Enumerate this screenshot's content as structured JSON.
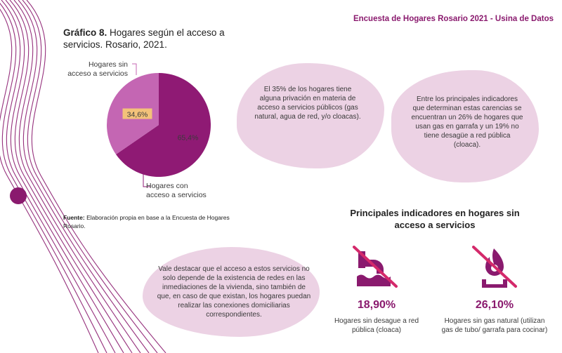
{
  "header": {
    "title": "Encuesta de Hogares Rosario 2021 - Usina de Datos"
  },
  "chart": {
    "title_bold": "Gráfico 8.",
    "title_rest": " Hogares según el acceso a servicios. Rosario, 2021.",
    "source_bold": "Fuente:",
    "source_rest": " Elaboración propia en base a la Encuesta de Hogares Rosario."
  },
  "chart_data": {
    "type": "pie",
    "slices": [
      {
        "label": "Hogares sin acceso a servicios",
        "value": 34.6,
        "value_label": "34,6%",
        "color": "#c466b3"
      },
      {
        "label": "Hogares con acceso a servicios",
        "value": 65.4,
        "value_label": "65,4%",
        "color": "#8f1a74"
      }
    ]
  },
  "colors": {
    "primary": "#8a1a6e",
    "blob": "#ecd2e4",
    "highlight": "#f3c27a",
    "strike": "#d42a6b"
  },
  "blobs": {
    "b1": "El 35% de los hogares tiene alguna privación en materia de acceso a servicios públicos (gas natural, agua de red, y/o cloacas).",
    "b2": "Entre los principales indicadores que determinan estas carencias se encuentran un 26% de hogares que usan gas en garrafa y un 19% no tiene desagüe a red pública (cloaca).",
    "b3": "Vale destacar que el acceso a estos servicios no solo depende de la existencia de redes en las inmediaciones de la vivienda, sino también de que, en caso de que existan, los hogares puedan realizar las conexiones domiciliarias correspondientes."
  },
  "indicators": {
    "title": "Principales indicadores en hogares sin acceso a servicios",
    "items": [
      {
        "icon": "no-drain-icon",
        "value": "18,90%",
        "label": "Hogares sin desague a red pública (cloaca)"
      },
      {
        "icon": "no-gas-icon",
        "value": "26,10%",
        "label": "Hogares sin gas natural (utilizan gas de tubo/ garrafa para cocinar)"
      }
    ]
  }
}
